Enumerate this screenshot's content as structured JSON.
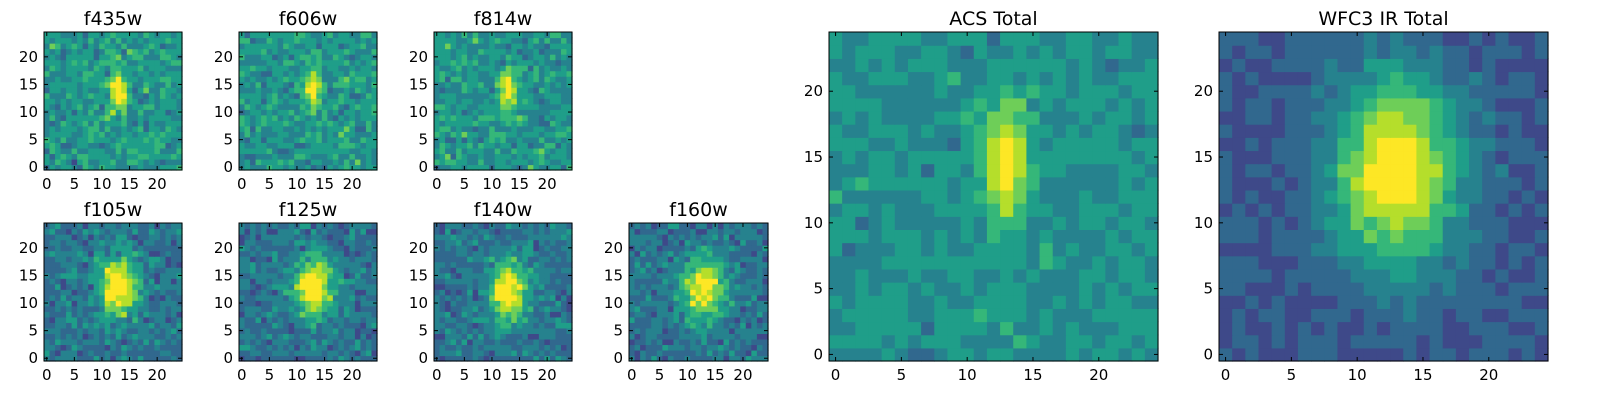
{
  "chart_data": [
    {
      "type": "heatmap",
      "title": "f435w",
      "xticks": [
        0,
        5,
        10,
        15,
        20
      ],
      "yticks": [
        0,
        5,
        10,
        15,
        20
      ],
      "xlim": [
        0,
        24
      ],
      "ylim": [
        0,
        24
      ],
      "colormap": "viridis",
      "peak": [
        13,
        14
      ],
      "pattern": "noisy-compact",
      "seed": 11
    },
    {
      "type": "heatmap",
      "title": "f606w",
      "xticks": [
        0,
        5,
        10,
        15,
        20
      ],
      "yticks": [
        0,
        5,
        10,
        15,
        20
      ],
      "xlim": [
        0,
        24
      ],
      "ylim": [
        0,
        24
      ],
      "colormap": "viridis",
      "peak": [
        13,
        14
      ],
      "pattern": "noisy-compact",
      "seed": 23
    },
    {
      "type": "heatmap",
      "title": "f814w",
      "xticks": [
        0,
        5,
        10,
        15,
        20
      ],
      "yticks": [
        0,
        5,
        10,
        15,
        20
      ],
      "xlim": [
        0,
        24
      ],
      "ylim": [
        0,
        24
      ],
      "colormap": "viridis",
      "peak": [
        13,
        14
      ],
      "pattern": "noisy-compact",
      "seed": 37
    },
    {
      "type": "heatmap",
      "title": "f105w",
      "xticks": [
        0,
        5,
        10,
        15,
        20
      ],
      "yticks": [
        0,
        5,
        10,
        15,
        20
      ],
      "xlim": [
        0,
        24
      ],
      "ylim": [
        0,
        24
      ],
      "colormap": "viridis",
      "peak": [
        13,
        13
      ],
      "pattern": "noisy-extended",
      "seed": 41
    },
    {
      "type": "heatmap",
      "title": "f125w",
      "xticks": [
        0,
        5,
        10,
        15,
        20
      ],
      "yticks": [
        0,
        5,
        10,
        15,
        20
      ],
      "xlim": [
        0,
        24
      ],
      "ylim": [
        0,
        24
      ],
      "colormap": "viridis",
      "peak": [
        13,
        13
      ],
      "pattern": "noisy-extended",
      "seed": 53
    },
    {
      "type": "heatmap",
      "title": "f140w",
      "xticks": [
        0,
        5,
        10,
        15,
        20
      ],
      "yticks": [
        0,
        5,
        10,
        15,
        20
      ],
      "xlim": [
        0,
        24
      ],
      "ylim": [
        0,
        24
      ],
      "colormap": "viridis",
      "peak": [
        13,
        12
      ],
      "pattern": "noisy-extended",
      "seed": 67
    },
    {
      "type": "heatmap",
      "title": "f160w",
      "xticks": [
        0,
        5,
        10,
        15,
        20
      ],
      "yticks": [
        0,
        5,
        10,
        15,
        20
      ],
      "xlim": [
        0,
        24
      ],
      "ylim": [
        0,
        24
      ],
      "colormap": "viridis",
      "peak": [
        13,
        13
      ],
      "pattern": "noisy-extended",
      "seed": 79
    },
    {
      "type": "heatmap",
      "title": "ACS Total",
      "xticks": [
        0,
        5,
        10,
        15,
        20
      ],
      "yticks": [
        0,
        5,
        10,
        15,
        20
      ],
      "xlim": [
        0,
        24
      ],
      "ylim": [
        0,
        24
      ],
      "colormap": "viridis",
      "peak": [
        13,
        15
      ],
      "pattern": "compact",
      "seed": 97
    },
    {
      "type": "heatmap",
      "title": "WFC3 IR Total",
      "xticks": [
        0,
        5,
        10,
        15,
        20
      ],
      "yticks": [
        0,
        5,
        10,
        15,
        20
      ],
      "xlim": [
        0,
        24
      ],
      "ylim": [
        0,
        24
      ],
      "colormap": "viridis",
      "peak": [
        13,
        14
      ],
      "pattern": "smooth-extended",
      "seed": 101
    }
  ],
  "colors": {
    "viridis": [
      "#440154",
      "#482878",
      "#3e4989",
      "#31688e",
      "#26828e",
      "#1f9e89",
      "#35b779",
      "#6ece58",
      "#b5de2b",
      "#fde725"
    ]
  }
}
